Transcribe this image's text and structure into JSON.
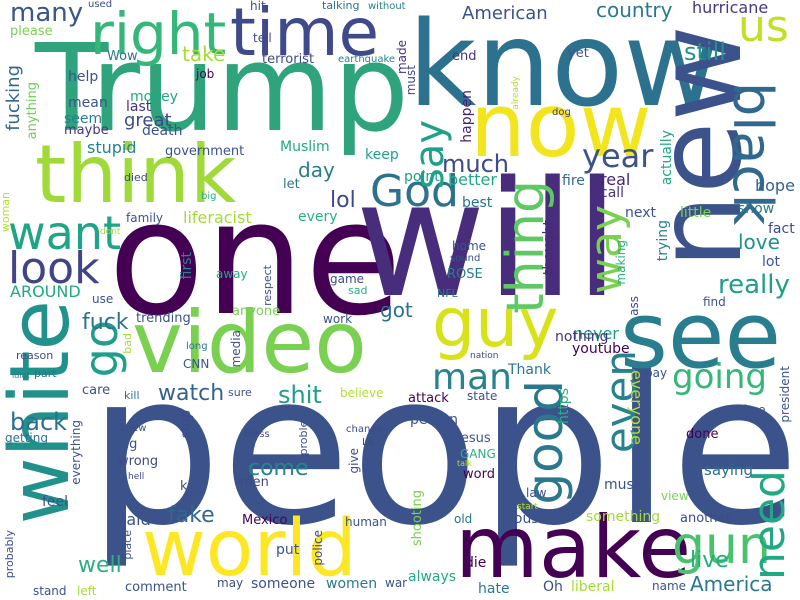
{
  "words": [
    {
      "text": "people",
      "color": "#3b528b"
    },
    {
      "text": "one",
      "color": "#440154"
    },
    {
      "text": "will",
      "color": "#472d7b"
    },
    {
      "text": "Trump",
      "color": "#2ea37c"
    },
    {
      "text": "know",
      "color": "#2c728e"
    },
    {
      "text": "new",
      "color": "#3b528b"
    },
    {
      "text": "make",
      "color": "#440154"
    },
    {
      "text": "see",
      "color": "#287d8e"
    },
    {
      "text": "video",
      "color": "#7ad151"
    },
    {
      "text": "world",
      "color": "#fde725"
    },
    {
      "text": "white",
      "color": "#21918c"
    },
    {
      "text": "think",
      "color": "#a0da39"
    },
    {
      "text": "now",
      "color": "#f2e51d"
    },
    {
      "text": "time",
      "color": "#3e4a89"
    },
    {
      "text": "right",
      "color": "#35b779"
    },
    {
      "text": "guy",
      "color": "#d8e219"
    },
    {
      "text": "black",
      "color": "#31688e"
    },
    {
      "text": "thing",
      "color": "#5ec962"
    },
    {
      "text": "go",
      "color": "#1f9e89"
    },
    {
      "text": "good",
      "color": "#2a788e"
    },
    {
      "text": "gun",
      "color": "#4ac16d"
    },
    {
      "text": "need",
      "color": "#22a884"
    },
    {
      "text": "want",
      "color": "#20a486"
    },
    {
      "text": "look",
      "color": "#414487"
    },
    {
      "text": "God",
      "color": "#2c728e"
    },
    {
      "text": "way",
      "color": "#7ad151"
    },
    {
      "text": "say",
      "color": "#1fa187"
    },
    {
      "text": "us",
      "color": "#c2df23"
    },
    {
      "text": "even",
      "color": "#26828e"
    },
    {
      "text": "man",
      "color": "#26828e"
    },
    {
      "text": "going",
      "color": "#35b779"
    },
    {
      "text": "year",
      "color": "#3b528b"
    },
    {
      "text": "many",
      "color": "#39568c"
    },
    {
      "text": "really",
      "color": "#1f9e89"
    },
    {
      "text": "love",
      "color": "#21918c"
    },
    {
      "text": "fake",
      "color": "#31688e"
    },
    {
      "text": "fuck",
      "color": "#2c728e"
    },
    {
      "text": "shit",
      "color": "#1f9e89"
    },
    {
      "text": "watch",
      "color": "#33638d"
    },
    {
      "text": "back",
      "color": "#2d708e"
    },
    {
      "text": "come",
      "color": "#25858e"
    },
    {
      "text": "well",
      "color": "#2ab07f"
    },
    {
      "text": "much",
      "color": "#3e4a89"
    },
    {
      "text": "live",
      "color": "#25ac82"
    },
    {
      "text": "America",
      "color": "#2a788e"
    },
    {
      "text": "said",
      "color": "#3b528b"
    },
    {
      "text": "got",
      "color": "#2c728e"
    },
    {
      "text": "lol",
      "color": "#3e4989"
    },
    {
      "text": "day",
      "color": "#287d8e"
    },
    {
      "text": "take",
      "color": "#a5db36"
    },
    {
      "text": "still",
      "color": "#21918c"
    },
    {
      "text": "never",
      "color": "#1f9e89"
    },
    {
      "text": "everyone",
      "color": "#b5de2b"
    },
    {
      "text": "country",
      "color": "#2a788e"
    },
    {
      "text": "American",
      "color": "#3b528b"
    },
    {
      "text": "hurricane",
      "color": "#453781"
    },
    {
      "text": "fucking",
      "color": "#31688e"
    },
    {
      "text": "keep",
      "color": "#20a386"
    },
    {
      "text": "better",
      "color": "#22a884"
    },
    {
      "text": "real",
      "color": "#482475"
    },
    {
      "text": "point",
      "color": "#1f9e89"
    },
    {
      "text": "hope",
      "color": "#33638d"
    },
    {
      "text": "show",
      "color": "#2a788e"
    },
    {
      "text": "fact",
      "color": "#3e4a89"
    },
    {
      "text": "lot",
      "color": "#3b528b"
    },
    {
      "text": "next",
      "color": "#3b528b"
    },
    {
      "text": "little",
      "color": "#7ad151"
    },
    {
      "text": "best",
      "color": "#2c728e"
    },
    {
      "text": "call",
      "color": "#443983"
    },
    {
      "text": "fire",
      "color": "#31688e"
    },
    {
      "text": "trying",
      "color": "#25858e"
    },
    {
      "text": "actually",
      "color": "#22a884"
    },
    {
      "text": "happen",
      "color": "#482173"
    },
    {
      "text": "thought",
      "color": "#482878"
    },
    {
      "text": "making",
      "color": "#2ab07f"
    },
    {
      "text": "nothing",
      "color": "#46337e"
    },
    {
      "text": "youtube",
      "color": "#440154"
    },
    {
      "text": "stupid",
      "color": "#26828e"
    },
    {
      "text": "government",
      "color": "#3b528b"
    },
    {
      "text": "Muslim",
      "color": "#22a884"
    },
    {
      "text": "death",
      "color": "#3b528b"
    },
    {
      "text": "great",
      "color": "#3e4989"
    },
    {
      "text": "money",
      "color": "#22a884"
    },
    {
      "text": "last",
      "color": "#46327e"
    },
    {
      "text": "mean",
      "color": "#3b528b"
    },
    {
      "text": "seem",
      "color": "#277f8e"
    },
    {
      "text": "maybe",
      "color": "#46337e"
    },
    {
      "text": "help",
      "color": "#3b528b"
    },
    {
      "text": "anything",
      "color": "#6ece58"
    },
    {
      "text": "job",
      "color": "#440154"
    },
    {
      "text": "Wow",
      "color": "#2a788e"
    },
    {
      "text": "terrorist",
      "color": "#3e4a89"
    },
    {
      "text": "made",
      "color": "#46327e"
    },
    {
      "text": "must",
      "color": "#3e4a89"
    },
    {
      "text": "end",
      "color": "#46337e"
    },
    {
      "text": "yet",
      "color": "#3b528b"
    },
    {
      "text": "please",
      "color": "#7ad151"
    },
    {
      "text": "tell",
      "color": "#3e4a89"
    },
    {
      "text": "hit",
      "color": "#3b528b"
    },
    {
      "text": "talking",
      "color": "#2c728e"
    },
    {
      "text": "without",
      "color": "#26828e"
    },
    {
      "text": "used",
      "color": "#3e4a89"
    },
    {
      "text": "earthquake",
      "color": "#26828e"
    },
    {
      "text": "already",
      "color": "#b5de2b"
    },
    {
      "text": "dog",
      "color": "#453781"
    },
    {
      "text": "died",
      "color": "#3e4a89"
    },
    {
      "text": "big",
      "color": "#2ab07f"
    },
    {
      "text": "family",
      "color": "#3b528b"
    },
    {
      "text": "liferacist",
      "color": "#a5db36"
    },
    {
      "text": "every",
      "color": "#2ab07f"
    },
    {
      "text": "let",
      "color": "#2a788e"
    },
    {
      "text": "woman",
      "color": "#b5de2b"
    },
    {
      "text": "dont",
      "color": "#a5db36"
    },
    {
      "text": "first",
      "color": "#25858e"
    },
    {
      "text": "away",
      "color": "#22a884"
    },
    {
      "text": "respect",
      "color": "#3b528b"
    },
    {
      "text": "game",
      "color": "#3e4a89"
    },
    {
      "text": "sad",
      "color": "#2ab07f"
    },
    {
      "text": "ROSE",
      "color": "#287d8e"
    },
    {
      "text": "NFL",
      "color": "#2a788e"
    },
    {
      "text": "home",
      "color": "#3b528b"
    },
    {
      "text": "sound",
      "color": "#3b528b"
    },
    {
      "text": "AROUND",
      "color": "#22a884"
    },
    {
      "text": "use",
      "color": "#3b528b"
    },
    {
      "text": "anyone",
      "color": "#7ad151"
    },
    {
      "text": "trending",
      "color": "#3b528b"
    },
    {
      "text": "work",
      "color": "#3b528b"
    },
    {
      "text": "find",
      "color": "#3b528b"
    },
    {
      "text": "ass",
      "color": "#3e4a89"
    },
    {
      "text": "reason",
      "color": "#3e4a89"
    },
    {
      "text": "bad",
      "color": "#a5db36"
    },
    {
      "text": "long",
      "color": "#2c728e"
    },
    {
      "text": "media",
      "color": "#3b528b"
    },
    {
      "text": "CNN",
      "color": "#3b528b"
    },
    {
      "text": "nation",
      "color": "#3e4a89"
    },
    {
      "text": "part",
      "color": "#2c728e"
    },
    {
      "text": "idiot",
      "color": "#2c728e"
    },
    {
      "text": "care",
      "color": "#3b528b"
    },
    {
      "text": "kill",
      "color": "#2c728e"
    },
    {
      "text": "sure",
      "color": "#3b528b"
    },
    {
      "text": "believe",
      "color": "#b5de2b"
    },
    {
      "text": "attack",
      "color": "#440154"
    },
    {
      "text": "state",
      "color": "#3b528b"
    },
    {
      "text": "https",
      "color": "#2ab07f"
    },
    {
      "text": "Thank",
      "color": "#2a788e"
    },
    {
      "text": "pay",
      "color": "#3b528b"
    },
    {
      "text": "president",
      "color": "#3b528b"
    },
    {
      "text": "free",
      "color": "#3b528b"
    },
    {
      "text": "done",
      "color": "#440154"
    },
    {
      "text": "saying",
      "color": "#2c728e"
    },
    {
      "text": "view",
      "color": "#7ad151"
    },
    {
      "text": "music",
      "color": "#3b528b"
    },
    {
      "text": "law",
      "color": "#3b528b"
    },
    {
      "text": "start",
      "color": "#b5de2b"
    },
    {
      "text": "another",
      "color": "#3e4a89"
    },
    {
      "text": "something",
      "color": "#a5db36"
    },
    {
      "text": "house",
      "color": "#3b528b"
    },
    {
      "text": "old",
      "color": "#2c728e"
    },
    {
      "text": "die",
      "color": "#440154"
    },
    {
      "text": "always",
      "color": "#22a884"
    },
    {
      "text": "liberal",
      "color": "#a5db36"
    },
    {
      "text": "hate",
      "color": "#2a788e"
    },
    {
      "text": "Oh",
      "color": "#3e4a89"
    },
    {
      "text": "name",
      "color": "#3b528b"
    },
    {
      "text": "word",
      "color": "#440154"
    },
    {
      "text": "Jesus",
      "color": "#3b528b"
    },
    {
      "text": "GANG",
      "color": "#2ab07f"
    },
    {
      "text": "talk",
      "color": "#b5de2b"
    },
    {
      "text": "shooting",
      "color": "#7ad151"
    },
    {
      "text": "person",
      "color": "#3b528b"
    },
    {
      "text": "stop",
      "color": "#3e4a89"
    },
    {
      "text": "flag",
      "color": "#3b528b"
    },
    {
      "text": "wrong",
      "color": "#3e4a89"
    },
    {
      "text": "knew",
      "color": "#3e4a89"
    },
    {
      "text": "hell",
      "color": "#3e4a89"
    },
    {
      "text": "kid",
      "color": "#3b528b"
    },
    {
      "text": "men",
      "color": "#3e4a89"
    },
    {
      "text": "bless",
      "color": "#3e4a89"
    },
    {
      "text": "problem",
      "color": "#3b528b"
    },
    {
      "text": "change",
      "color": "#3e4a89"
    },
    {
      "text": "La",
      "color": "#3e4a89"
    },
    {
      "text": "give",
      "color": "#3e4a89"
    },
    {
      "text": "getting",
      "color": "#2c728e"
    },
    {
      "text": "everything",
      "color": "#3b528b"
    },
    {
      "text": "feel",
      "color": "#3b528b"
    },
    {
      "text": "probably",
      "color": "#3e4a89"
    },
    {
      "text": "place",
      "color": "#3b528b"
    },
    {
      "text": "comment",
      "color": "#3b528b"
    },
    {
      "text": "stand",
      "color": "#3b528b"
    },
    {
      "text": "left",
      "color": "#a5db36"
    },
    {
      "text": "Mexico",
      "color": "#440154"
    },
    {
      "text": "put",
      "color": "#3b528b"
    },
    {
      "text": "human",
      "color": "#3b528b"
    },
    {
      "text": "police",
      "color": "#3e4a89"
    },
    {
      "text": "women",
      "color": "#2a788e"
    },
    {
      "text": "war",
      "color": "#3b528b"
    },
    {
      "text": "may",
      "color": "#3e4a89"
    },
    {
      "text": "someone",
      "color": "#3b528b"
    }
  ]
}
